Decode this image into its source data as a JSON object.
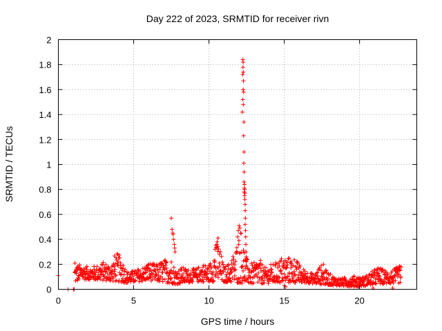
{
  "chart_data": {
    "type": "scatter",
    "title": "Day 222 of 2023, SRMTID for receiver rivn",
    "xlabel": "GPS time / hours",
    "ylabel": "SRMTID / TECUs",
    "xlim": [
      0,
      23.8
    ],
    "ylim": [
      0,
      2
    ],
    "xticks": [
      0,
      5,
      10,
      15,
      20
    ],
    "yticks": [
      0,
      0.2,
      0.4,
      0.6,
      0.8,
      1,
      1.2,
      1.4,
      1.6,
      1.8,
      2
    ],
    "grid": true,
    "marker": "+",
    "color": "#ff0000",
    "envelope": [
      [
        0.0,
        0.11
      ],
      [
        0.6,
        0.0
      ],
      [
        1.0,
        0.0
      ],
      [
        1.1,
        0.2
      ],
      [
        1.5,
        0.2
      ],
      [
        2.0,
        0.18
      ],
      [
        2.5,
        0.19
      ],
      [
        3.0,
        0.22
      ],
      [
        3.5,
        0.2
      ],
      [
        3.8,
        0.3
      ],
      [
        4.2,
        0.26
      ],
      [
        4.6,
        0.14
      ],
      [
        5.0,
        0.15
      ],
      [
        5.5,
        0.17
      ],
      [
        6.0,
        0.22
      ],
      [
        6.5,
        0.2
      ],
      [
        7.0,
        0.24
      ],
      [
        7.5,
        0.25
      ],
      [
        7.8,
        0.16
      ],
      [
        8.2,
        0.18
      ],
      [
        8.7,
        0.16
      ],
      [
        9.2,
        0.17
      ],
      [
        9.6,
        0.21
      ],
      [
        10.0,
        0.19
      ],
      [
        10.3,
        0.3
      ],
      [
        10.6,
        0.4
      ],
      [
        11.0,
        0.18
      ],
      [
        11.4,
        0.22
      ],
      [
        11.8,
        0.35
      ],
      [
        12.1,
        0.5
      ],
      [
        12.5,
        0.25
      ],
      [
        12.9,
        0.2
      ],
      [
        13.3,
        0.26
      ],
      [
        13.7,
        0.17
      ],
      [
        14.1,
        0.2
      ],
      [
        14.5,
        0.22
      ],
      [
        14.9,
        0.27
      ],
      [
        15.3,
        0.26
      ],
      [
        15.7,
        0.26
      ],
      [
        16.1,
        0.18
      ],
      [
        16.5,
        0.15
      ],
      [
        17.0,
        0.12
      ],
      [
        17.4,
        0.2
      ],
      [
        17.8,
        0.15
      ],
      [
        18.3,
        0.1
      ],
      [
        18.8,
        0.09
      ],
      [
        19.3,
        0.1
      ],
      [
        19.8,
        0.11
      ],
      [
        20.3,
        0.1
      ],
      [
        20.8,
        0.14
      ],
      [
        21.2,
        0.18
      ],
      [
        21.6,
        0.16
      ],
      [
        22.0,
        0.15
      ],
      [
        22.4,
        0.17
      ],
      [
        22.8,
        0.2
      ]
    ],
    "floor": [
      [
        0.0,
        0.11
      ],
      [
        1.1,
        0.05
      ],
      [
        1.5,
        0.08
      ],
      [
        3.0,
        0.07
      ],
      [
        4.6,
        0.05
      ],
      [
        6.0,
        0.07
      ],
      [
        7.8,
        0.04
      ],
      [
        9.0,
        0.06
      ],
      [
        10.6,
        0.06
      ],
      [
        12.9,
        0.04
      ],
      [
        14.5,
        0.05
      ],
      [
        16.5,
        0.05
      ],
      [
        18.3,
        0.03
      ],
      [
        19.8,
        0.02
      ],
      [
        21.2,
        0.04
      ],
      [
        22.8,
        0.05
      ]
    ],
    "extra_points": [
      [
        0.0,
        0.11
      ],
      [
        0.65,
        0.0
      ],
      [
        1.0,
        0.0
      ],
      [
        1.05,
        0.0
      ],
      [
        1.1,
        0.21
      ],
      [
        7.5,
        0.57
      ],
      [
        7.55,
        0.48
      ],
      [
        7.6,
        0.45
      ],
      [
        7.62,
        0.44
      ],
      [
        7.65,
        0.4
      ],
      [
        7.7,
        0.36
      ],
      [
        7.72,
        0.33
      ],
      [
        7.75,
        0.3
      ],
      [
        10.6,
        0.41
      ],
      [
        10.55,
        0.38
      ],
      [
        10.45,
        0.35
      ],
      [
        10.4,
        0.32
      ],
      [
        12.0,
        0.51
      ],
      [
        12.05,
        0.49
      ],
      [
        11.95,
        0.47
      ],
      [
        12.1,
        0.45
      ],
      [
        11.9,
        0.42
      ],
      [
        12.25,
        1.84
      ],
      [
        12.27,
        1.82
      ],
      [
        12.26,
        1.78
      ],
      [
        12.28,
        1.74
      ],
      [
        12.24,
        1.72
      ],
      [
        12.29,
        1.67
      ],
      [
        12.27,
        1.6
      ],
      [
        12.3,
        1.58
      ],
      [
        12.25,
        1.52
      ],
      [
        12.28,
        1.48
      ],
      [
        12.22,
        1.42
      ],
      [
        12.32,
        1.34
      ],
      [
        12.3,
        1.23
      ],
      [
        12.33,
        1.1
      ],
      [
        12.31,
        1.01
      ],
      [
        12.34,
        0.94
      ],
      [
        12.33,
        0.86
      ],
      [
        12.36,
        0.84
      ],
      [
        12.35,
        0.81
      ],
      [
        12.37,
        0.8
      ],
      [
        12.34,
        0.78
      ],
      [
        12.39,
        0.77
      ],
      [
        12.36,
        0.75
      ],
      [
        12.38,
        0.72
      ],
      [
        12.4,
        0.68
      ],
      [
        12.41,
        0.63
      ],
      [
        12.42,
        0.57
      ],
      [
        12.4,
        0.52
      ],
      [
        12.43,
        0.47
      ],
      [
        12.44,
        0.42
      ],
      [
        12.45,
        0.36
      ],
      [
        12.46,
        0.3
      ],
      [
        12.47,
        0.26
      ],
      [
        12.49,
        0.22
      ],
      [
        12.5,
        0.18
      ],
      [
        15.0,
        0.03
      ],
      [
        15.1,
        0.02
      ],
      [
        17.6,
        0.2
      ],
      [
        20.9,
        0.01
      ],
      [
        22.2,
        0.01
      ]
    ]
  }
}
